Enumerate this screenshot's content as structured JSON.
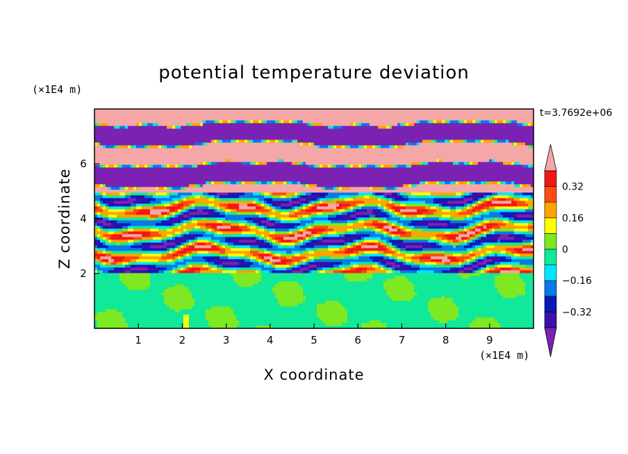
{
  "chart_data": {
    "type": "heatmap",
    "title": "potential temperature deviation",
    "xlabel": "X coordinate",
    "ylabel": "Z coordinate",
    "x_unit": "(×1E4 m)",
    "y_unit": "(×1E4 m)",
    "time_label": "t=3.7692e+06",
    "xlim": [
      0,
      10
    ],
    "ylim": [
      0,
      8
    ],
    "x_ticks": [
      1,
      2,
      3,
      4,
      5,
      6,
      7,
      8,
      9
    ],
    "y_ticks": [
      2,
      4,
      6
    ],
    "x_tick_labels": [
      "1",
      "2",
      "3",
      "4",
      "5",
      "6",
      "7",
      "8",
      "9"
    ],
    "y_tick_labels": [
      "2",
      "4",
      "6"
    ],
    "colorbar": {
      "levels": [
        -0.4,
        -0.32,
        -0.24,
        -0.16,
        -0.08,
        0,
        0.08,
        0.16,
        0.24,
        0.32,
        0.4
      ],
      "colors": [
        "#7b22b4",
        "#3b10a8",
        "#0a1ab8",
        "#0a78e6",
        "#00e6ff",
        "#10e89a",
        "#7ee822",
        "#ffff00",
        "#ffa400",
        "#ff4a10",
        "#f21818",
        "#f5a7a7"
      ],
      "tick_values": [
        0.32,
        0.16,
        0,
        -0.16,
        -0.32
      ],
      "tick_labels": [
        "0.32",
        "0.16",
        "0",
        "−0.16",
        "−0.32"
      ]
    },
    "layers": {
      "lower_z_range": [
        0,
        2
      ],
      "lower_dominant_value": 0.0,
      "middle_z_range": [
        2,
        5
      ],
      "upper_z_range": [
        5,
        8
      ],
      "upper_band_values": [
        0.45,
        -0.45
      ]
    }
  }
}
